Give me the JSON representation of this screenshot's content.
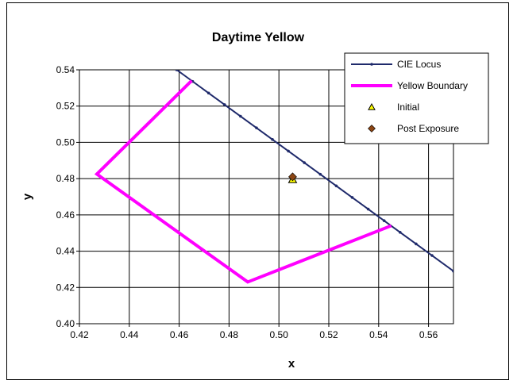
{
  "chart_data": {
    "type": "scatter",
    "title": "Daytime Yellow",
    "xlabel": "x",
    "ylabel": "y",
    "xlim": [
      0.42,
      0.57
    ],
    "ylim": [
      0.4,
      0.54
    ],
    "xticks": [
      "0.42",
      "0.44",
      "0.46",
      "0.48",
      "0.50",
      "0.52",
      "0.54",
      "0.56"
    ],
    "yticks": [
      "0.40",
      "0.42",
      "0.44",
      "0.46",
      "0.48",
      "0.50",
      "0.52",
      "0.54"
    ],
    "grid": true,
    "legend_position": "top-right",
    "series": [
      {
        "name": "CIE Locus",
        "style": "line-with-small-markers",
        "color": "#1f2a6b",
        "x": [
          0.459,
          0.4654,
          0.4718,
          0.4782,
          0.4846,
          0.491,
          0.4974,
          0.5038,
          0.5102,
          0.5166,
          0.523,
          0.5294,
          0.5358,
          0.5422,
          0.5486,
          0.555,
          0.5614,
          0.57
        ],
        "y": [
          0.54,
          0.5336,
          0.5272,
          0.5208,
          0.5144,
          0.508,
          0.5016,
          0.4952,
          0.4888,
          0.4824,
          0.476,
          0.4696,
          0.4632,
          0.4568,
          0.4504,
          0.444,
          0.4376,
          0.429
        ]
      },
      {
        "name": "Yellow Boundary",
        "style": "line",
        "color": "#ff00ff",
        "x": [
          0.465,
          0.427,
          0.4875,
          0.545
        ],
        "y": [
          0.534,
          0.4825,
          0.423,
          0.454
        ]
      },
      {
        "name": "Initial",
        "style": "triangle-marker",
        "color": "#ffff00",
        "x": [
          0.5055
        ],
        "y": [
          0.4795
        ]
      },
      {
        "name": "Post Exposure",
        "style": "diamond-marker",
        "color": "#8b4513",
        "x": [
          0.5055
        ],
        "y": [
          0.481
        ]
      }
    ]
  }
}
